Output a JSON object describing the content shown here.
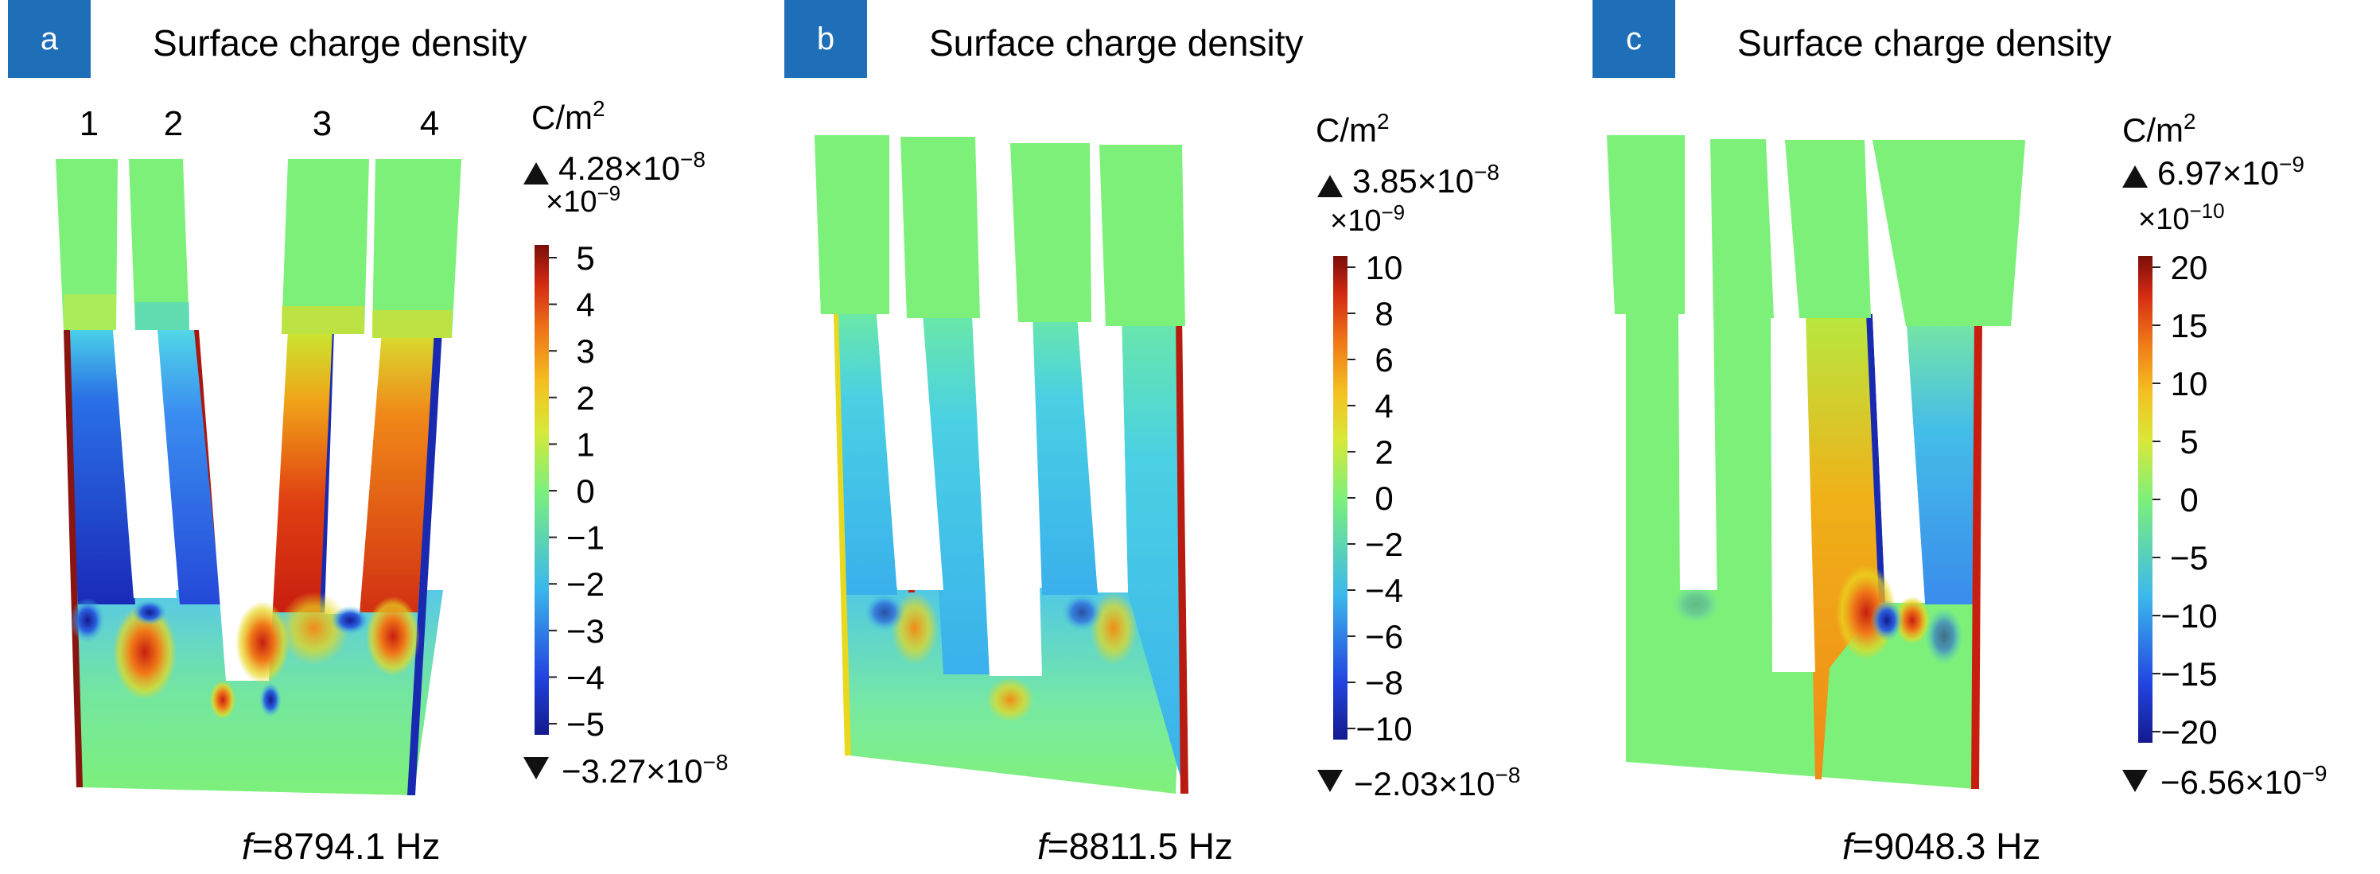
{
  "figure": {
    "panels": [
      {
        "letter": "a",
        "title": "Surface charge density",
        "unit_base": "C/m",
        "unit_exp": "2",
        "max_label": "4.28×10",
        "max_exp": "−8",
        "min_label": "−3.27×10",
        "min_exp": "−8",
        "scale_label": "×10",
        "scale_exp": "−9",
        "ticks": [
          "5",
          "4",
          "3",
          "2",
          "1",
          "0",
          "−1",
          "−2",
          "−3",
          "−4",
          "−5"
        ],
        "finger_labels": [
          "1",
          "2",
          "3",
          "4"
        ],
        "freq_label": "=8794.1 Hz"
      },
      {
        "letter": "b",
        "title": "Surface charge density",
        "unit_base": "C/m",
        "unit_exp": "2",
        "max_label": "3.85×10",
        "max_exp": "−8",
        "min_label": "−2.03×10",
        "min_exp": "−8",
        "scale_label": "×10",
        "scale_exp": "−9",
        "ticks": [
          "10",
          "8",
          "6",
          "4",
          "2",
          "0",
          "−2",
          "−4",
          "−6",
          "−8",
          "−10"
        ],
        "freq_label": "=8811.5 Hz"
      },
      {
        "letter": "c",
        "title": "Surface charge density",
        "unit_base": "C/m",
        "unit_exp": "2",
        "max_label": "6.97×10",
        "max_exp": "−9",
        "min_label": "−6.56×10",
        "min_exp": "−9",
        "scale_label": "×10",
        "scale_exp": "−10",
        "ticks": [
          "20",
          "15",
          "10",
          "5",
          "0",
          "−5",
          "−10",
          "−15",
          "−20"
        ],
        "freq_label": "=9048.3 Hz"
      }
    ],
    "freq_symbol": "f"
  },
  "colors": {
    "badge": "#1f6fb8",
    "neutral": "#7df07a",
    "cyan": "#45c8e8",
    "blue": "#2050d8",
    "deep_blue": "#121b8c",
    "yellow": "#e8d820",
    "orange": "#f08a18",
    "red": "#c81e10",
    "dark_red": "#7a0f0a"
  }
}
